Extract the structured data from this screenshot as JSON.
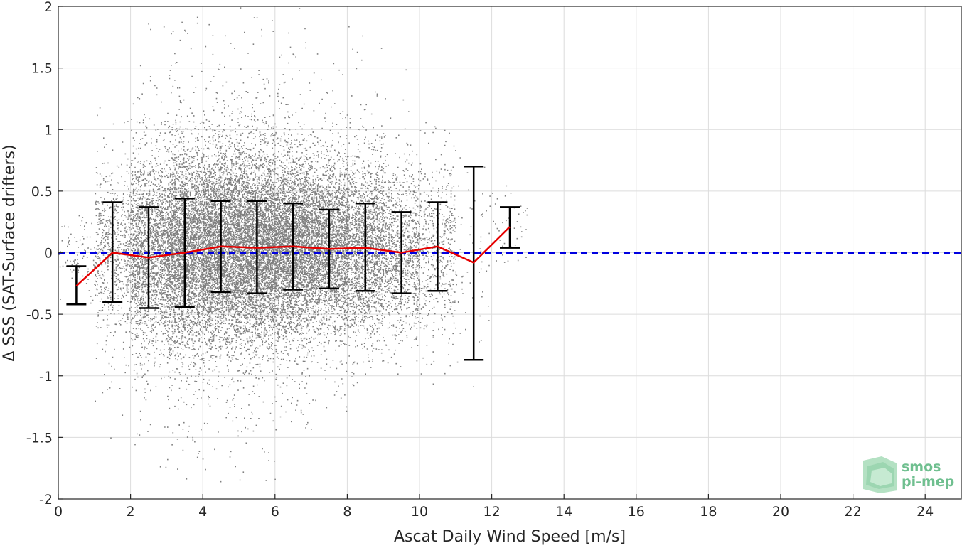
{
  "chart_data": {
    "type": "scatter",
    "title": "",
    "xlabel": "Ascat Daily Wind Speed [m/s]",
    "ylabel": "Δ SSS (SAT-Surface drifters)",
    "xlim": [
      0,
      25
    ],
    "ylim": [
      -2,
      2
    ],
    "xticks": [
      0,
      2,
      4,
      6,
      8,
      10,
      12,
      14,
      16,
      18,
      20,
      22,
      24
    ],
    "yticks": [
      -2,
      -1.5,
      -1,
      -0.5,
      0,
      0.5,
      1,
      1.5,
      2
    ],
    "xtick_labels": [
      "0",
      "2",
      "4",
      "6",
      "8",
      "10",
      "12",
      "14",
      "16",
      "18",
      "20",
      "22",
      "24"
    ],
    "ytick_labels": [
      "-2",
      "-1.5",
      "-1",
      "-0.5",
      "0",
      "0.5",
      "1",
      "1.5",
      "2"
    ],
    "grid": true,
    "reference_line": {
      "y": 0,
      "style": "dashed",
      "color": "#0000e0"
    },
    "scatter_density": {
      "description_of_spread": "dense gray point cloud",
      "bins": [
        {
          "x": [
            0.0,
            1.0
          ],
          "center": -0.02,
          "sd": 0.16,
          "min": -0.45,
          "max": 0.35,
          "count": 90
        },
        {
          "x": [
            1.0,
            2.0
          ],
          "center": 0.02,
          "sd": 0.33,
          "min": -1.75,
          "max": 1.3,
          "count": 700
        },
        {
          "x": [
            2.0,
            3.0
          ],
          "center": 0.0,
          "sd": 0.38,
          "min": -1.8,
          "max": 2.0,
          "count": 2000
        },
        {
          "x": [
            3.0,
            4.0
          ],
          "center": 0.02,
          "sd": 0.4,
          "min": -1.85,
          "max": 2.0,
          "count": 3200
        },
        {
          "x": [
            4.0,
            5.0
          ],
          "center": 0.05,
          "sd": 0.38,
          "min": -1.9,
          "max": 2.0,
          "count": 3800
        },
        {
          "x": [
            5.0,
            6.0
          ],
          "center": 0.05,
          "sd": 0.38,
          "min": -1.85,
          "max": 2.0,
          "count": 3800
        },
        {
          "x": [
            6.0,
            7.0
          ],
          "center": 0.05,
          "sd": 0.35,
          "min": -1.5,
          "max": 2.0,
          "count": 3400
        },
        {
          "x": [
            7.0,
            8.0
          ],
          "center": 0.05,
          "sd": 0.33,
          "min": -1.3,
          "max": 2.0,
          "count": 2700
        },
        {
          "x": [
            8.0,
            9.0
          ],
          "center": 0.05,
          "sd": 0.35,
          "min": -1.1,
          "max": 1.85,
          "count": 1900
        },
        {
          "x": [
            9.0,
            10.0
          ],
          "center": 0.0,
          "sd": 0.33,
          "min": -1.0,
          "max": 1.5,
          "count": 1100
        },
        {
          "x": [
            10.0,
            11.0
          ],
          "center": 0.05,
          "sd": 0.36,
          "min": -1.2,
          "max": 1.1,
          "count": 520
        },
        {
          "x": [
            11.0,
            12.0
          ],
          "center": -0.05,
          "sd": 0.45,
          "min": -1.1,
          "max": 0.8,
          "count": 60
        },
        {
          "x": [
            12.0,
            13.0
          ],
          "center": 0.2,
          "sd": 0.15,
          "min": -0.1,
          "max": 0.55,
          "count": 45
        }
      ]
    },
    "series": [
      {
        "type": "errorbar",
        "x": [
          0.5,
          1.5,
          2.5,
          3.5,
          4.5,
          5.5,
          6.5,
          7.5,
          8.5,
          9.5,
          10.5,
          11.5,
          12.5
        ],
        "mean": [
          -0.27,
          0.0,
          -0.04,
          0.0,
          0.05,
          0.04,
          0.05,
          0.03,
          0.04,
          0.0,
          0.05,
          -0.08,
          0.21
        ],
        "lower": [
          -0.42,
          -0.4,
          -0.45,
          -0.44,
          -0.32,
          -0.33,
          -0.3,
          -0.29,
          -0.31,
          -0.33,
          -0.31,
          -0.87,
          0.04
        ],
        "upper": [
          -0.11,
          0.41,
          0.37,
          0.44,
          0.42,
          0.42,
          0.4,
          0.35,
          0.4,
          0.33,
          0.41,
          0.7,
          0.37
        ],
        "line_color": "#e60000",
        "bar_color": "#000000"
      }
    ]
  },
  "colors": {
    "scatter": "#808080",
    "grid": "#dcdcdc",
    "axes": "#262626",
    "zero_line": "#0000e0",
    "mean_line": "#e60000",
    "error_bars": "#000000",
    "logo_text": "#6fbf8f",
    "logo_shape": "#9fd8b0"
  },
  "logo": {
    "line1": "smos",
    "line2": "pi-mep"
  }
}
